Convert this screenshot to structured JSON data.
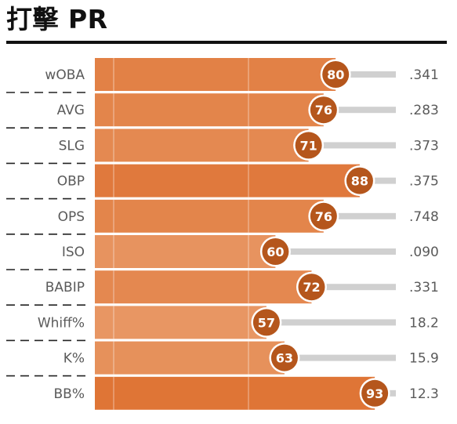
{
  "title": "打擊 PR",
  "colors": {
    "bar": "#e07a3b",
    "badge": "#b5561c",
    "track": "#d0d0d0",
    "divider": "#222222"
  },
  "chart_data": {
    "type": "bar",
    "orientation": "horizontal",
    "title": "打擊 PR",
    "xlim": [
      0,
      100
    ],
    "categories": [
      "wOBA",
      "AVG",
      "SLG",
      "OBP",
      "OPS",
      "ISO",
      "BABIP",
      "Whiff%",
      "K%",
      "BB%"
    ],
    "values": [
      80,
      76,
      71,
      88,
      76,
      60,
      72,
      57,
      63,
      93
    ],
    "stat_values": [
      ".341",
      ".283",
      ".373",
      ".375",
      ".748",
      ".090",
      ".331",
      "18.2",
      "15.9",
      "12.3"
    ]
  }
}
